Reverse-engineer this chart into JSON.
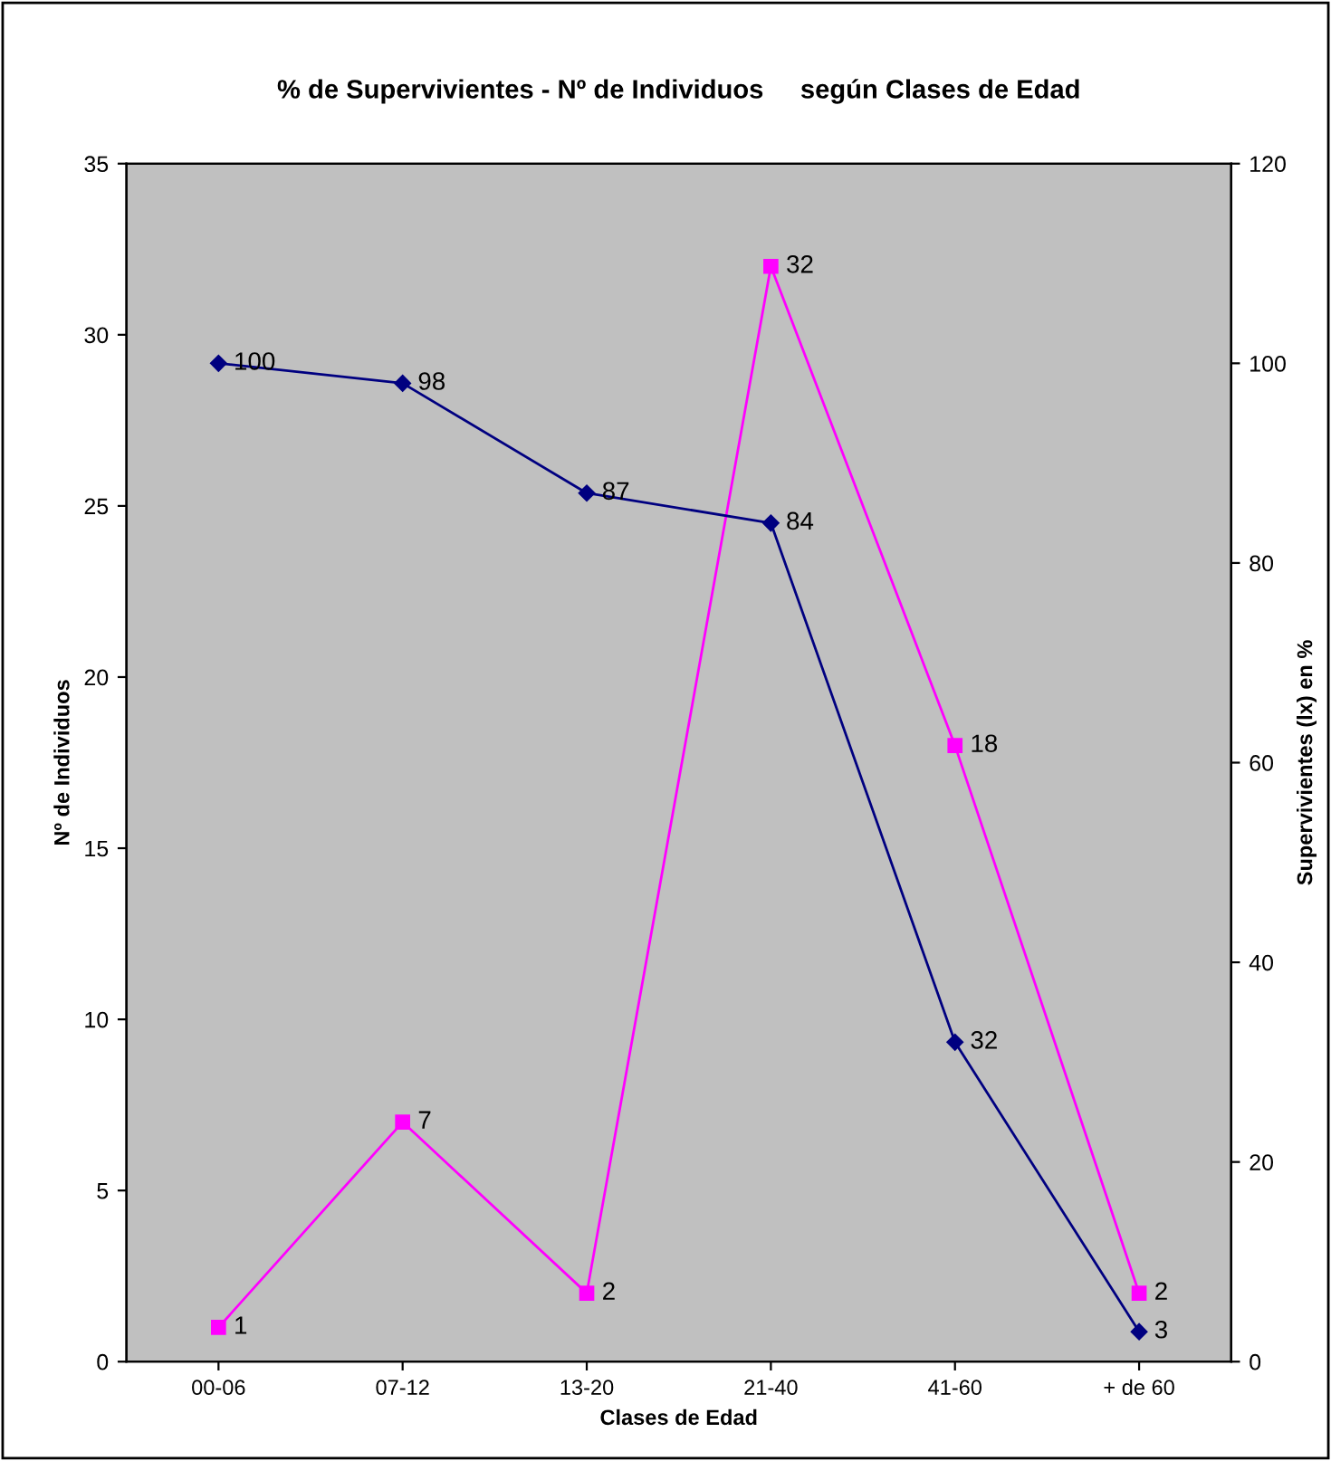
{
  "chart_data": {
    "type": "line",
    "title": "% de Supervivientes - Nº de Individuos     según Clases de Edad",
    "xlabel": "Clases de Edad",
    "ylabel": "Nº de Individuos",
    "y2label": "Supervivientes (lx) en %",
    "categories": [
      "00-06",
      "07-12",
      "13-20",
      "21-40",
      "41-60",
      "+ de 60"
    ],
    "series": [
      {
        "color": "#ff00ff",
        "values": [
          1,
          7,
          2,
          32,
          18,
          2
        ],
        "marker": "square"
      },
      {
        "color": "#000080",
        "values": [
          100,
          98,
          87,
          84,
          32,
          3
        ],
        "marker": "diamond",
        "axis": "y2"
      }
    ],
    "ylim": [
      0,
      35
    ],
    "yticks": [
      0,
      5,
      10,
      15,
      20,
      25,
      30,
      35
    ],
    "y2lim": [
      0,
      120
    ],
    "y2ticks": [
      0,
      20,
      40,
      60,
      80,
      100,
      120
    ],
    "data_labels": true,
    "grid": false,
    "legend": false,
    "line_style": "solid"
  }
}
